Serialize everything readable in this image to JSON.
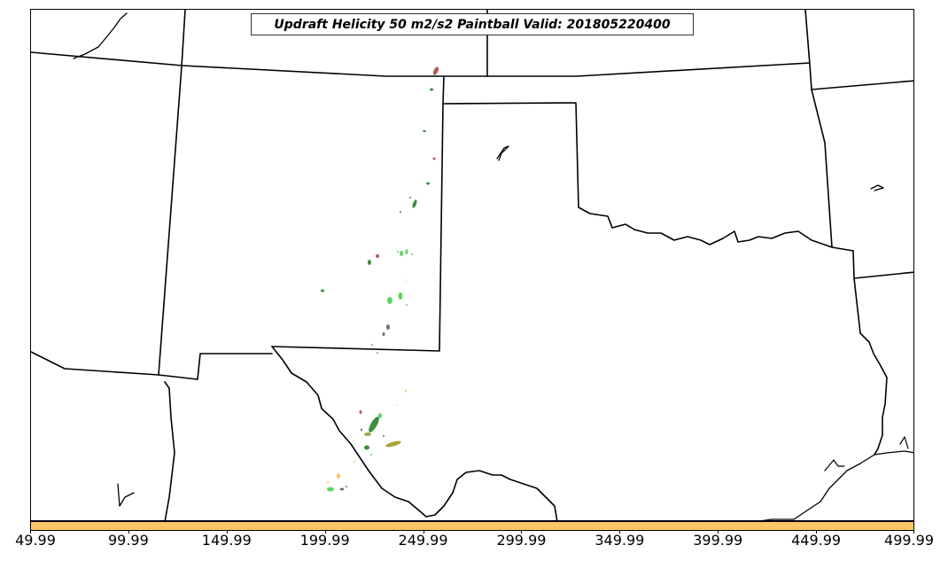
{
  "map": {
    "title": "Updraft Helicity 50 m2/s2 Paintball Valid: 201805220400",
    "colorbar": {
      "color": "#fec468",
      "ticks": [
        "49.99",
        "99.99",
        "149.99",
        "199.99",
        "249.99",
        "299.99",
        "349.99",
        "399.99",
        "449.99",
        "499.99"
      ]
    },
    "paintball_colors": {
      "dark_green": "#3e8d3e",
      "bright_green": "#5fd65f",
      "olive": "#a9a33c",
      "brick_red": "#b15a5a",
      "gray": "#707070",
      "orange": "#fec468"
    }
  }
}
